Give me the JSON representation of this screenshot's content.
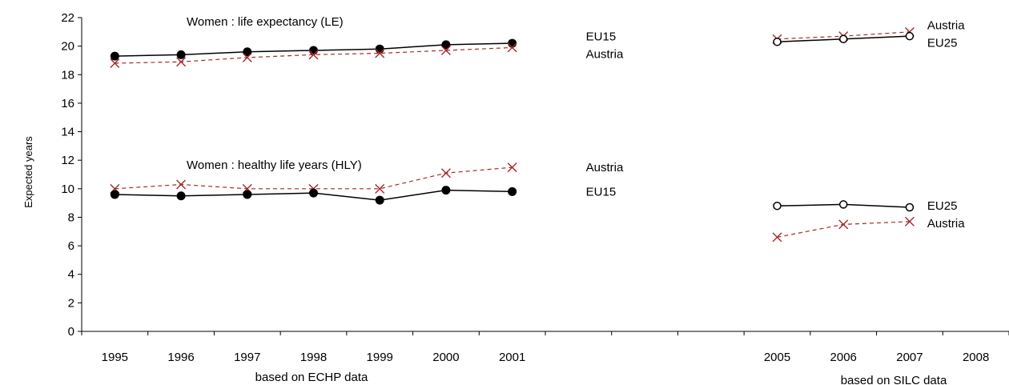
{
  "chart_data": {
    "type": "line",
    "xlabel": "",
    "ylabel": "Expected years",
    "ylim": [
      0,
      22
    ],
    "yticks": [
      0,
      2,
      4,
      6,
      8,
      10,
      12,
      14,
      16,
      18,
      20,
      22
    ],
    "categories": [
      "1995",
      "1996",
      "1997",
      "1998",
      "1999",
      "2000",
      "2001",
      "",
      "",
      "",
      "2005",
      "2006",
      "2007",
      "2008"
    ],
    "grid": false,
    "group_labels": [
      "based on ECHP data",
      "based on SILC data"
    ],
    "annotations": {
      "le_title": "Women : life expectancy (LE)",
      "hly_title": "Women : healthy life years (HLY)"
    },
    "series": [
      {
        "id": "le_eu15",
        "name": "EU15",
        "marker": "filled-circle",
        "dash": "solid",
        "color": "#000000",
        "points": [
          [
            "1995",
            19.3
          ],
          [
            "1996",
            19.4
          ],
          [
            "1997",
            19.6
          ],
          [
            "1998",
            19.7
          ],
          [
            "1999",
            19.8
          ],
          [
            "2000",
            20.1
          ],
          [
            "2001",
            20.2
          ]
        ]
      },
      {
        "id": "le_at_echp",
        "name": "Austria",
        "marker": "x",
        "dash": "dashed",
        "color": "#a52a2a",
        "points": [
          [
            "1995",
            18.8
          ],
          [
            "1996",
            18.9
          ],
          [
            "1997",
            19.2
          ],
          [
            "1998",
            19.4
          ],
          [
            "1999",
            19.5
          ],
          [
            "2000",
            19.7
          ],
          [
            "2001",
            19.9
          ]
        ]
      },
      {
        "id": "le_at_silc",
        "name": "Austria",
        "marker": "x",
        "dash": "dashed",
        "color": "#a52a2a",
        "points": [
          [
            "2005",
            20.5
          ],
          [
            "2006",
            20.7
          ],
          [
            "2007",
            21.0
          ]
        ]
      },
      {
        "id": "le_eu25",
        "name": "EU25",
        "marker": "open-circle",
        "dash": "solid",
        "color": "#000000",
        "points": [
          [
            "2005",
            20.3
          ],
          [
            "2006",
            20.5
          ],
          [
            "2007",
            20.7
          ]
        ]
      },
      {
        "id": "hly_at_echp",
        "name": "Austria",
        "marker": "x",
        "dash": "dashed",
        "color": "#a52a2a",
        "points": [
          [
            "1995",
            10.0
          ],
          [
            "1996",
            10.3
          ],
          [
            "1997",
            10.0
          ],
          [
            "1998",
            10.0
          ],
          [
            "1999",
            10.0
          ],
          [
            "2000",
            11.1
          ],
          [
            "2001",
            11.5
          ]
        ]
      },
      {
        "id": "hly_eu15",
        "name": "EU15",
        "marker": "filled-circle",
        "dash": "solid",
        "color": "#000000",
        "points": [
          [
            "1995",
            9.6
          ],
          [
            "1996",
            9.5
          ],
          [
            "1997",
            9.6
          ],
          [
            "1998",
            9.7
          ],
          [
            "1999",
            9.2
          ],
          [
            "2000",
            9.9
          ],
          [
            "2001",
            9.8
          ]
        ]
      },
      {
        "id": "hly_eu25",
        "name": "EU25",
        "marker": "open-circle",
        "dash": "solid",
        "color": "#000000",
        "points": [
          [
            "2005",
            8.8
          ],
          [
            "2006",
            8.9
          ],
          [
            "2007",
            8.7
          ]
        ]
      },
      {
        "id": "hly_at_silc",
        "name": "Austria",
        "marker": "x",
        "dash": "dashed",
        "color": "#a52a2a",
        "points": [
          [
            "2005",
            6.6
          ],
          [
            "2006",
            7.5
          ],
          [
            "2007",
            7.7
          ]
        ]
      }
    ],
    "end_labels": [
      {
        "series": "le_eu15",
        "text": "EU15"
      },
      {
        "series": "le_at_echp",
        "text": "Austria"
      },
      {
        "series": "le_at_silc",
        "text": "Austria"
      },
      {
        "series": "le_eu25",
        "text": "EU25"
      },
      {
        "series": "hly_at_echp",
        "text": "Austria"
      },
      {
        "series": "hly_eu15",
        "text": "EU15"
      },
      {
        "series": "hly_eu25",
        "text": "EU25"
      },
      {
        "series": "hly_at_silc",
        "text": "Austria"
      }
    ]
  }
}
